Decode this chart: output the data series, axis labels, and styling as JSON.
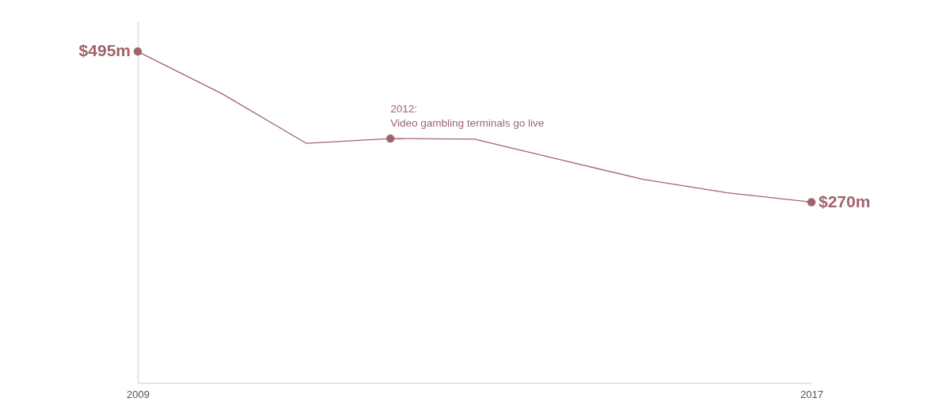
{
  "chart_data": {
    "type": "line",
    "x": [
      2009,
      2010,
      2011,
      2012,
      2013,
      2014,
      2015,
      2016,
      2017
    ],
    "series": [
      {
        "color": "#a0646e",
        "values": [
          495,
          432,
          358,
          365,
          364,
          334,
          304,
          284,
          270
        ],
        "value_labels": [
          "$495m",
          null,
          null,
          null,
          null,
          null,
          null,
          null,
          "$270m"
        ]
      }
    ],
    "xlim": [
      2009,
      2017
    ],
    "xticks": [
      2009,
      2017
    ],
    "ylim": [
      0,
      540
    ],
    "tick_labels": "x",
    "grid": false,
    "line_style": "solid",
    "annotations": [
      {
        "text": "2012:\nVideo gambling terminals go live",
        "x": 2012,
        "y": 365
      }
    ]
  }
}
